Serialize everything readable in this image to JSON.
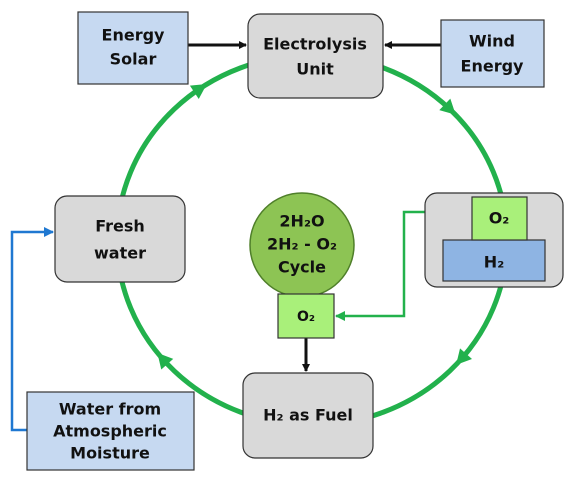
{
  "nodes": [
    {
      "lines": [
        "Energy",
        "Solar"
      ]
    },
    {
      "lines": [
        "Electrolysis",
        "Unit"
      ]
    },
    {
      "lines": [
        "Wind",
        "Energy"
      ]
    },
    {
      "lines": [
        "O₂"
      ]
    },
    {
      "lines": [
        "H₂"
      ]
    },
    {
      "lines": [
        "2H₂O",
        "2H₂ - O₂",
        "Cycle"
      ]
    },
    {
      "lines": [
        "O₂"
      ]
    },
    {
      "lines": [
        "H₂ as Fuel"
      ]
    },
    {
      "lines": [
        "Fresh",
        "water"
      ]
    },
    {
      "lines": [
        "Water from",
        "Atmospheric",
        "Moisture"
      ]
    }
  ]
}
